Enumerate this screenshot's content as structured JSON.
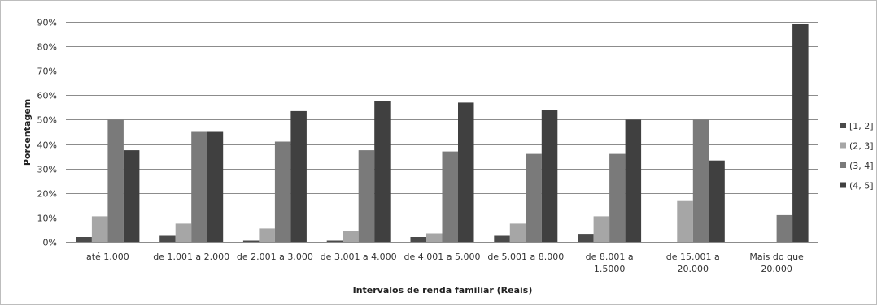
{
  "chart_data": {
    "type": "bar",
    "title": "",
    "xlabel": "Intervalos de renda familiar (Reais)",
    "ylabel": "Porcentagem",
    "ylim": [
      0,
      90
    ],
    "yticks": [
      "0%",
      "10%",
      "20%",
      "30%",
      "40%",
      "50%",
      "60%",
      "70%",
      "80%",
      "90%"
    ],
    "grid": true,
    "legend_position": "right",
    "categories": [
      [
        "até 1.000"
      ],
      [
        "de 1.001 a 2.000"
      ],
      [
        "de 2.001 a 3.000"
      ],
      [
        "de 3.001 a 4.000"
      ],
      [
        "de 4.001 a 5.000"
      ],
      [
        "de 5.001 a 8.000"
      ],
      [
        "de 8.001 a",
        "1.5000"
      ],
      [
        "de 15.001 a",
        "20.000"
      ],
      [
        "Mais do que",
        "20.000"
      ]
    ],
    "series": [
      {
        "name": "[1, 2]",
        "color": "#4a4a4a",
        "values": [
          2,
          2.5,
          0.5,
          0.5,
          2,
          2.5,
          3.3,
          0,
          0
        ]
      },
      {
        "name": "(2, 3]",
        "color": "#a6a6a6",
        "values": [
          10.5,
          7.5,
          5.5,
          4.5,
          3.5,
          7.5,
          10.5,
          16.7,
          0
        ]
      },
      {
        "name": "(3, 4]",
        "color": "#7a7a7a",
        "values": [
          50,
          45,
          41,
          37.5,
          37,
          36,
          36,
          50,
          11
        ]
      },
      {
        "name": "(4, 5]",
        "color": "#404040",
        "values": [
          37.5,
          45,
          53.5,
          57.5,
          57,
          54,
          50,
          33.3,
          89
        ]
      }
    ]
  }
}
